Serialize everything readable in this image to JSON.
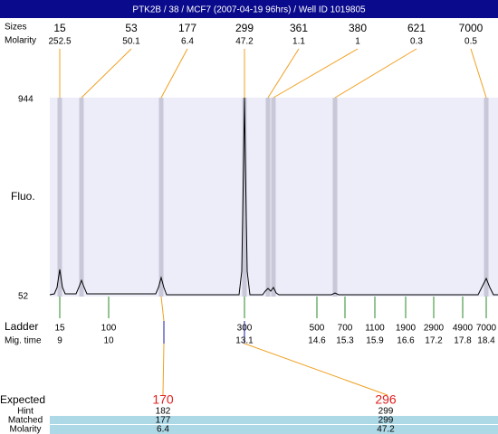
{
  "header": {
    "title": "PTK2B / 38 / MCF7 (2007-04-19 96hrs) / Well ID 1019805"
  },
  "peaks": {
    "row_labels": [
      "Sizes",
      "Molarity"
    ],
    "sizes": [
      15,
      53,
      177,
      299,
      361,
      380,
      621,
      7000
    ],
    "molarity": [
      252.5,
      50.1,
      6.4,
      47.2,
      1.1,
      1,
      0.3,
      0.5
    ]
  },
  "axis": {
    "label": "Fluo.",
    "ymax": 944,
    "ymin": 52
  },
  "ladder": {
    "labels": [
      "Ladder",
      "Mig. time"
    ],
    "sizes": [
      15,
      100,
      300,
      500,
      700,
      1100,
      1900,
      2900,
      4900,
      7000
    ],
    "mig_times": [
      9,
      10,
      13.1,
      14.6,
      15.3,
      15.9,
      16.6,
      17.2,
      17.8,
      18.4
    ]
  },
  "expected": {
    "labels": [
      "Expected",
      "Hint",
      "Matched",
      "Molarity"
    ],
    "columns": [
      {
        "expected": 170,
        "hint": 182,
        "matched": 177,
        "molarity": 6.4
      },
      {
        "expected": 296,
        "hint": 299,
        "matched": 299,
        "molarity": 47.2
      }
    ]
  }
}
